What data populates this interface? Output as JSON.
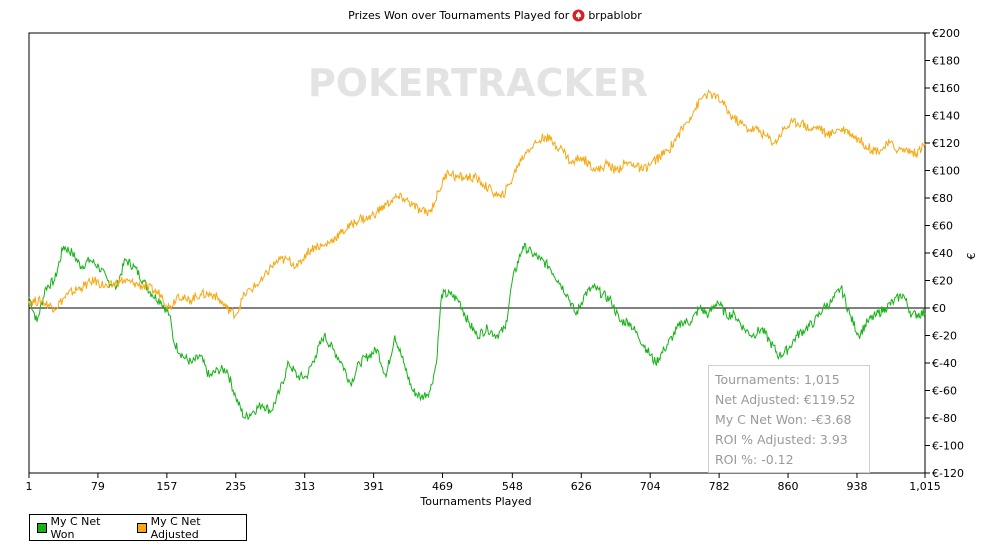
{
  "chart_data": {
    "type": "line",
    "title": "Prizes Won over Tournaments Played for",
    "player": "brpablobr",
    "xlabel": "Tournaments Played",
    "ylabel": "€",
    "watermark": "POKERTRACKER",
    "xlim": [
      1,
      1015
    ],
    "ylim": [
      -120,
      200
    ],
    "grid": false,
    "legend_position": "bottom-left",
    "x_ticks": [
      1,
      79,
      157,
      235,
      313,
      391,
      469,
      548,
      626,
      704,
      782,
      860,
      938,
      1015
    ],
    "x_tick_labels": [
      "1",
      "79",
      "157",
      "235",
      "313",
      "391",
      "469",
      "548",
      "626",
      "704",
      "782",
      "860",
      "938",
      "1,015"
    ],
    "y_ticks": [
      200,
      180,
      160,
      140,
      120,
      100,
      80,
      60,
      40,
      20,
      0,
      -20,
      -40,
      -60,
      -80,
      -100,
      -120
    ],
    "y_tick_labels": [
      "€200",
      "€180",
      "€160",
      "€140",
      "€120",
      "€100",
      "€80",
      "€60",
      "€40",
      "€20",
      "€0",
      "€-20",
      "€-40",
      "€-60",
      "€-80",
      "€-100",
      "€-120"
    ],
    "series": [
      {
        "name": "My C Net Won",
        "color": "#16b316",
        "points": [
          [
            1,
            8
          ],
          [
            10,
            -10
          ],
          [
            20,
            15
          ],
          [
            30,
            20
          ],
          [
            40,
            45
          ],
          [
            50,
            40
          ],
          [
            60,
            30
          ],
          [
            70,
            35
          ],
          [
            80,
            30
          ],
          [
            90,
            20
          ],
          [
            100,
            15
          ],
          [
            110,
            35
          ],
          [
            120,
            30
          ],
          [
            130,
            20
          ],
          [
            140,
            10
          ],
          [
            150,
            5
          ],
          [
            160,
            -5
          ],
          [
            165,
            -25
          ],
          [
            175,
            -35
          ],
          [
            185,
            -40
          ],
          [
            195,
            -35
          ],
          [
            205,
            -50
          ],
          [
            215,
            -45
          ],
          [
            225,
            -45
          ],
          [
            235,
            -65
          ],
          [
            245,
            -80
          ],
          [
            255,
            -75
          ],
          [
            265,
            -70
          ],
          [
            275,
            -75
          ],
          [
            285,
            -60
          ],
          [
            295,
            -40
          ],
          [
            305,
            -50
          ],
          [
            315,
            -50
          ],
          [
            325,
            -35
          ],
          [
            335,
            -20
          ],
          [
            345,
            -30
          ],
          [
            355,
            -40
          ],
          [
            365,
            -55
          ],
          [
            375,
            -40
          ],
          [
            385,
            -35
          ],
          [
            395,
            -30
          ],
          [
            405,
            -50
          ],
          [
            415,
            -20
          ],
          [
            425,
            -40
          ],
          [
            435,
            -60
          ],
          [
            445,
            -65
          ],
          [
            455,
            -60
          ],
          [
            462,
            -40
          ],
          [
            468,
            10
          ],
          [
            478,
            10
          ],
          [
            488,
            5
          ],
          [
            498,
            -10
          ],
          [
            508,
            -20
          ],
          [
            520,
            -15
          ],
          [
            530,
            -20
          ],
          [
            540,
            -15
          ],
          [
            548,
            20
          ],
          [
            560,
            45
          ],
          [
            570,
            40
          ],
          [
            580,
            35
          ],
          [
            590,
            30
          ],
          [
            600,
            20
          ],
          [
            610,
            10
          ],
          [
            620,
            -5
          ],
          [
            630,
            10
          ],
          [
            640,
            15
          ],
          [
            650,
            10
          ],
          [
            660,
            5
          ],
          [
            670,
            -10
          ],
          [
            680,
            -10
          ],
          [
            690,
            -20
          ],
          [
            700,
            -30
          ],
          [
            710,
            -40
          ],
          [
            720,
            -30
          ],
          [
            730,
            -20
          ],
          [
            740,
            -10
          ],
          [
            750,
            -10
          ],
          [
            760,
            0
          ],
          [
            770,
            -5
          ],
          [
            780,
            5
          ],
          [
            790,
            -5
          ],
          [
            800,
            -5
          ],
          [
            810,
            -15
          ],
          [
            820,
            -20
          ],
          [
            830,
            -15
          ],
          [
            840,
            -25
          ],
          [
            850,
            -35
          ],
          [
            860,
            -30
          ],
          [
            870,
            -20
          ],
          [
            880,
            -15
          ],
          [
            890,
            -10
          ],
          [
            900,
            0
          ],
          [
            910,
            5
          ],
          [
            920,
            15
          ],
          [
            930,
            -5
          ],
          [
            940,
            -20
          ],
          [
            950,
            -10
          ],
          [
            960,
            -5
          ],
          [
            970,
            0
          ],
          [
            980,
            5
          ],
          [
            990,
            10
          ],
          [
            1000,
            -5
          ],
          [
            1015,
            -3.68
          ]
        ]
      },
      {
        "name": "My C Net Adjusted",
        "color": "#f7a812",
        "points": [
          [
            1,
            5
          ],
          [
            15,
            5
          ],
          [
            30,
            0
          ],
          [
            45,
            10
          ],
          [
            60,
            15
          ],
          [
            75,
            20
          ],
          [
            90,
            15
          ],
          [
            105,
            20
          ],
          [
            120,
            18
          ],
          [
            135,
            15
          ],
          [
            150,
            10
          ],
          [
            160,
            0
          ],
          [
            170,
            10
          ],
          [
            180,
            5
          ],
          [
            195,
            10
          ],
          [
            210,
            10
          ],
          [
            225,
            0
          ],
          [
            235,
            -5
          ],
          [
            245,
            10
          ],
          [
            255,
            15
          ],
          [
            265,
            20
          ],
          [
            275,
            30
          ],
          [
            285,
            35
          ],
          [
            295,
            35
          ],
          [
            305,
            30
          ],
          [
            315,
            40
          ],
          [
            325,
            45
          ],
          [
            335,
            45
          ],
          [
            345,
            50
          ],
          [
            355,
            55
          ],
          [
            365,
            60
          ],
          [
            375,
            65
          ],
          [
            385,
            65
          ],
          [
            395,
            70
          ],
          [
            405,
            75
          ],
          [
            415,
            80
          ],
          [
            425,
            80
          ],
          [
            435,
            75
          ],
          [
            445,
            70
          ],
          [
            455,
            70
          ],
          [
            465,
            85
          ],
          [
            475,
            100
          ],
          [
            485,
            95
          ],
          [
            495,
            95
          ],
          [
            505,
            95
          ],
          [
            515,
            90
          ],
          [
            525,
            85
          ],
          [
            535,
            80
          ],
          [
            545,
            90
          ],
          [
            555,
            105
          ],
          [
            565,
            115
          ],
          [
            575,
            120
          ],
          [
            585,
            125
          ],
          [
            595,
            120
          ],
          [
            605,
            115
          ],
          [
            615,
            105
          ],
          [
            625,
            110
          ],
          [
            635,
            105
          ],
          [
            645,
            100
          ],
          [
            655,
            105
          ],
          [
            665,
            100
          ],
          [
            675,
            105
          ],
          [
            685,
            105
          ],
          [
            695,
            100
          ],
          [
            705,
            105
          ],
          [
            715,
            110
          ],
          [
            725,
            115
          ],
          [
            735,
            125
          ],
          [
            745,
            135
          ],
          [
            755,
            145
          ],
          [
            765,
            155
          ],
          [
            775,
            155
          ],
          [
            785,
            150
          ],
          [
            795,
            140
          ],
          [
            805,
            135
          ],
          [
            815,
            130
          ],
          [
            825,
            130
          ],
          [
            835,
            125
          ],
          [
            845,
            120
          ],
          [
            855,
            130
          ],
          [
            865,
            135
          ],
          [
            875,
            135
          ],
          [
            885,
            130
          ],
          [
            895,
            132
          ],
          [
            905,
            125
          ],
          [
            915,
            130
          ],
          [
            925,
            130
          ],
          [
            935,
            125
          ],
          [
            945,
            120
          ],
          [
            955,
            115
          ],
          [
            965,
            115
          ],
          [
            975,
            120
          ],
          [
            985,
            115
          ],
          [
            995,
            115
          ],
          [
            1005,
            112
          ],
          [
            1015,
            119.52
          ]
        ]
      }
    ],
    "tooltip": [
      {
        "label": "Tournaments",
        "value": "1,015"
      },
      {
        "label": "Net Adjusted",
        "value": "€119.52"
      },
      {
        "label": "My C Net Won",
        "value": "-€3.68"
      },
      {
        "label": "ROI % Adjusted",
        "value": "3.93"
      },
      {
        "label": "ROI %",
        "value": "-0.12"
      }
    ]
  }
}
